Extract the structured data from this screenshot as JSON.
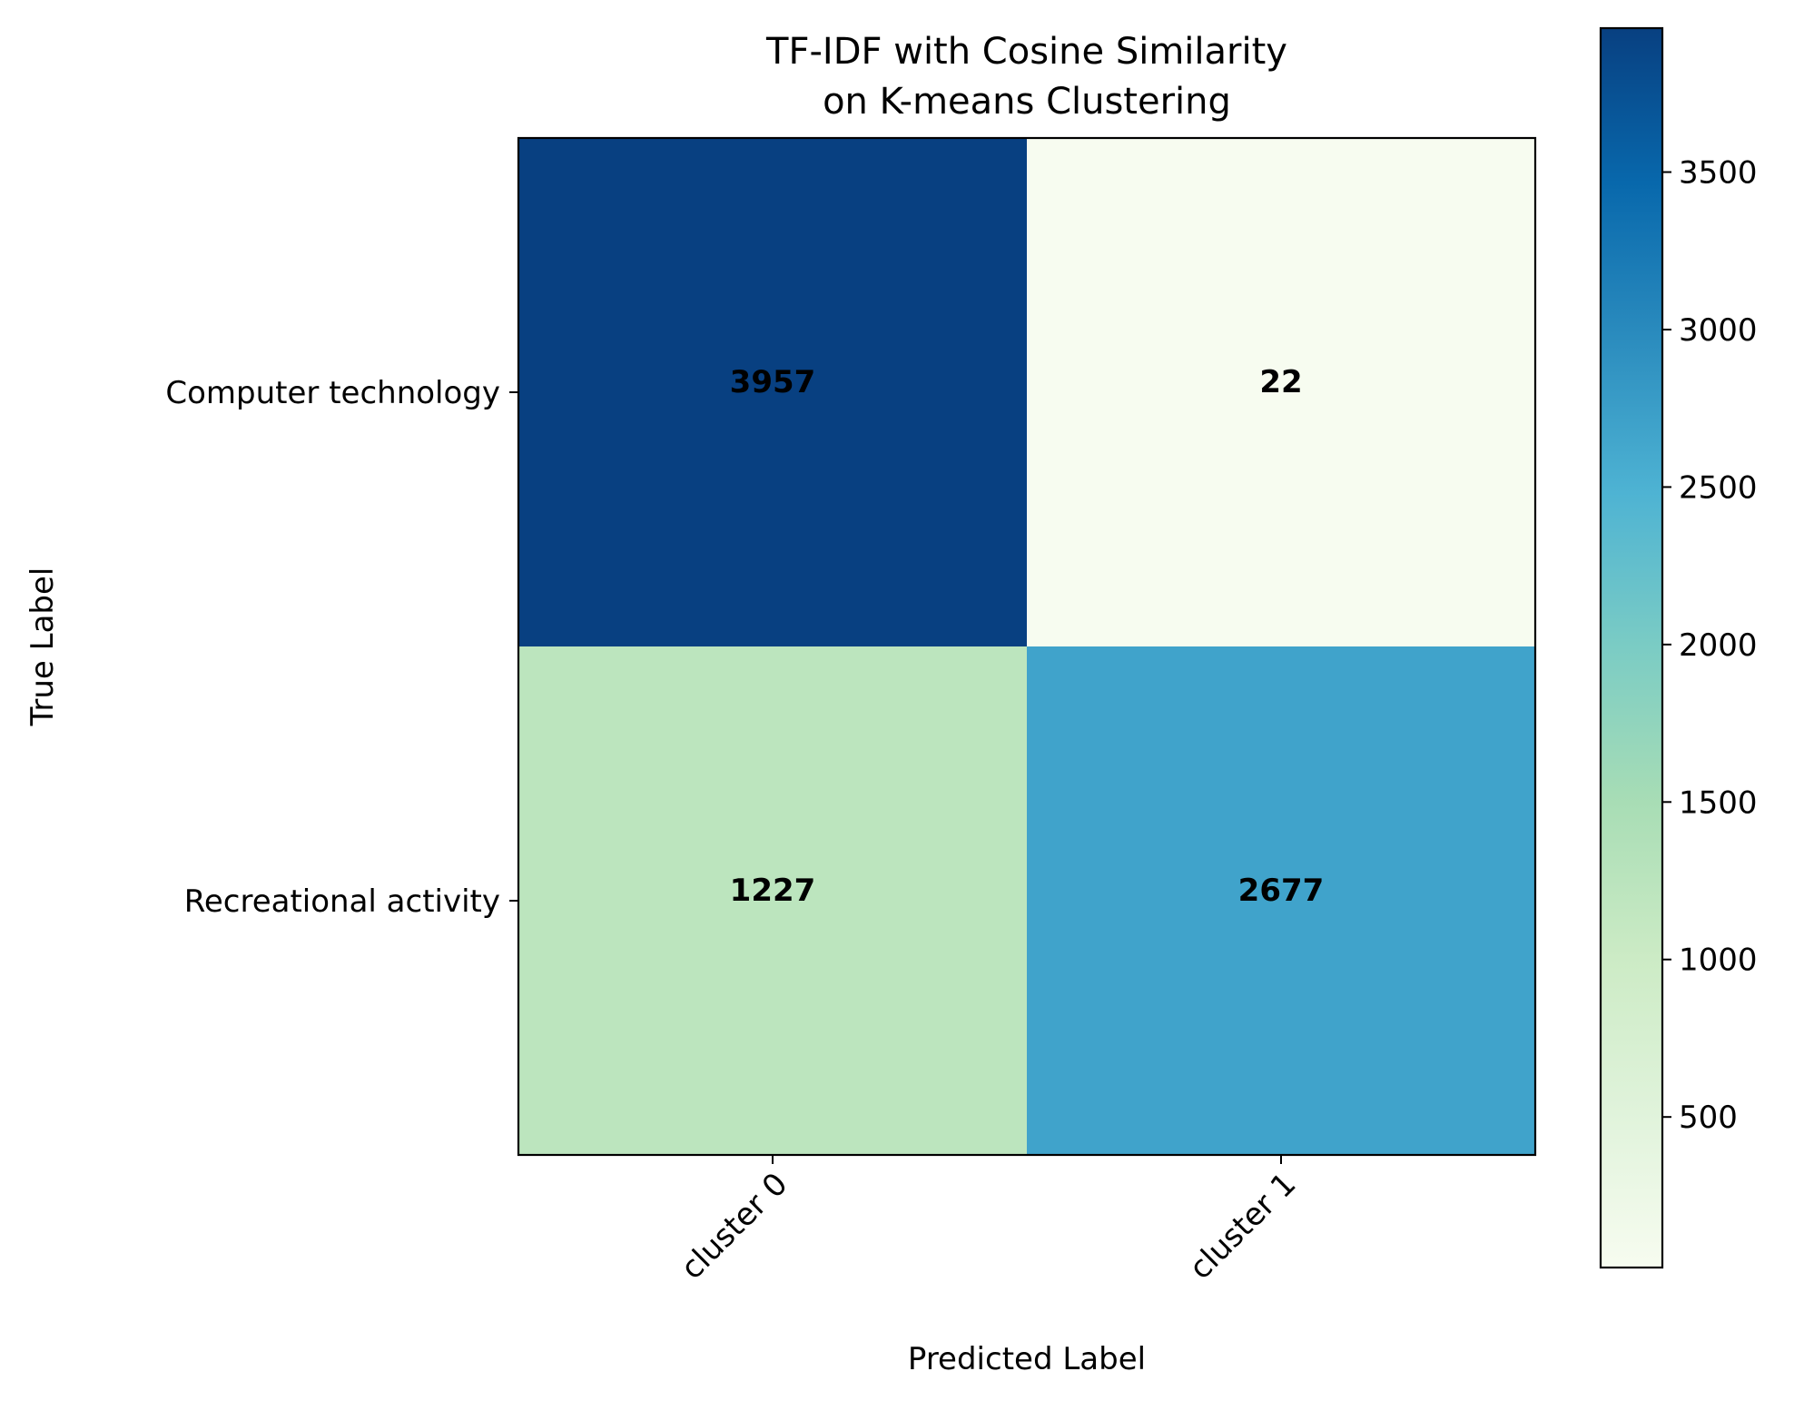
{
  "chart_data": {
    "type": "heatmap",
    "title": "TF-IDF with Cosine Similarity\non K-means Clustering",
    "xlabel": "Predicted Label",
    "ylabel": "True Label",
    "x_categories": [
      "cluster 0",
      "cluster 1"
    ],
    "y_categories": [
      "Computer technology",
      "Recreational activity"
    ],
    "values": [
      [
        3957,
        22
      ],
      [
        1227,
        2677
      ]
    ],
    "colormap": "GnBu",
    "colormap_stops": [
      "#f7fcf0",
      "#e0f3db",
      "#ccebc5",
      "#a8ddb5",
      "#7bccc4",
      "#4eb3d3",
      "#2b8cbe",
      "#0868ac",
      "#084081"
    ],
    "vmin": 22,
    "vmax": 3957,
    "colorbar_ticks": [
      500,
      1000,
      1500,
      2000,
      2500,
      3000,
      3500
    ],
    "grid": false,
    "colorbar_position": "right"
  }
}
